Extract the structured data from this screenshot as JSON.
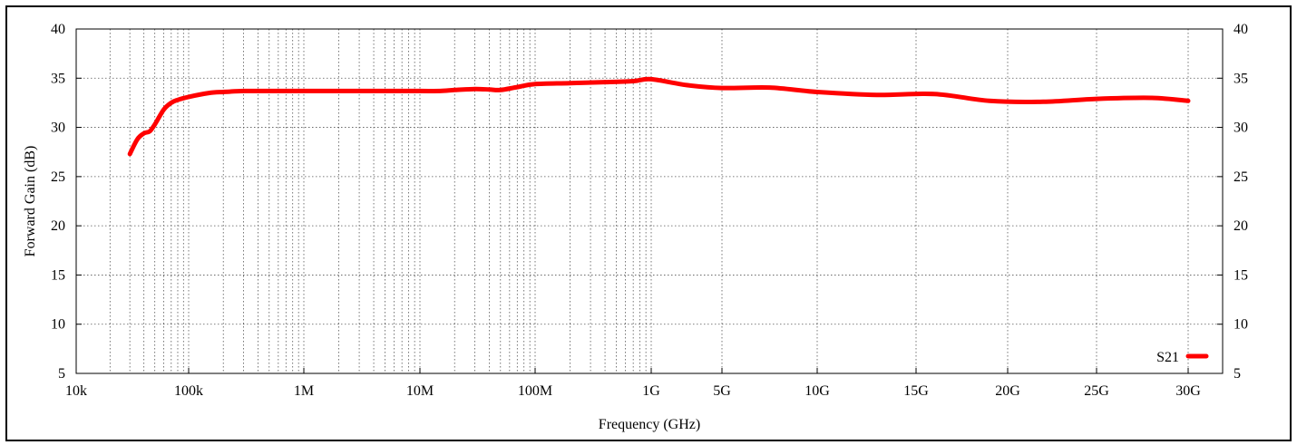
{
  "chart_data": {
    "type": "line",
    "title": "",
    "xlabel": "Frequency (GHz)",
    "ylabel": "Forward Gain (dB)",
    "ylim": [
      5,
      40
    ],
    "yticks": [
      "5",
      "10",
      "15",
      "20",
      "25",
      "30",
      "35",
      "40"
    ],
    "right_yticks": [
      "5",
      "10",
      "15",
      "20",
      "25",
      "30",
      "35",
      "40"
    ],
    "x_axis_note": "log scale 10k–1G, then linear 1G–30G",
    "xticks": [
      "10k",
      "100k",
      "1M",
      "10M",
      "100M",
      "1G",
      "5G",
      "10G",
      "15G",
      "20G",
      "25G",
      "30G"
    ],
    "grid": true,
    "legend": {
      "position": "bottom-right",
      "entries": [
        "S21"
      ]
    },
    "colors": {
      "S21": "#ff0000"
    },
    "series": [
      {
        "name": "S21",
        "x": [
          "30k",
          "35k",
          "40k",
          "45k",
          "50k",
          "60k",
          "70k",
          "80k",
          "100k",
          "150k",
          "200k",
          "300k",
          "500k",
          "1M",
          "2M",
          "5M",
          "10M",
          "15M",
          "20M",
          "30M",
          "40M",
          "50M",
          "70M",
          "100M",
          "200M",
          "400M",
          "700M",
          "1G",
          "3G",
          "5G",
          "7.5G",
          "10G",
          "13G",
          "16G",
          "19G",
          "22G",
          "25G",
          "28G",
          "30G"
        ],
        "values": [
          27.3,
          28.8,
          29.4,
          29.6,
          30.3,
          31.8,
          32.5,
          32.8,
          33.1,
          33.5,
          33.6,
          33.7,
          33.7,
          33.7,
          33.7,
          33.7,
          33.7,
          33.7,
          33.8,
          33.9,
          33.85,
          33.8,
          34.1,
          34.4,
          34.5,
          34.6,
          34.7,
          34.9,
          34.3,
          34.0,
          34.05,
          33.6,
          33.3,
          33.4,
          32.7,
          32.6,
          32.9,
          33.0,
          32.7
        ]
      }
    ]
  }
}
